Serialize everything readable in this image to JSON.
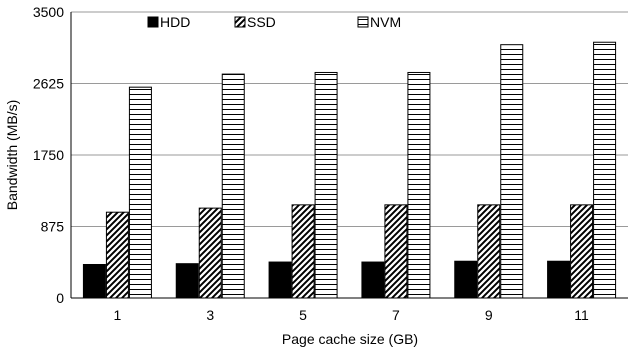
{
  "chart_data": {
    "type": "bar",
    "categories": [
      "1",
      "3",
      "5",
      "7",
      "9",
      "11"
    ],
    "series": [
      {
        "name": "HDD",
        "values": [
          410,
          420,
          440,
          440,
          450,
          450
        ],
        "pattern": "solid-black"
      },
      {
        "name": "SSD",
        "values": [
          1050,
          1100,
          1140,
          1140,
          1140,
          1140
        ],
        "pattern": "diagonal-hatch"
      },
      {
        "name": "NVM",
        "values": [
          2580,
          2740,
          2760,
          2760,
          3100,
          3130
        ],
        "pattern": "horizontal-lines"
      }
    ],
    "title": "",
    "xlabel": "Page cache size (GB)",
    "ylabel": "Bandwidth (MB/s)",
    "ylim": [
      0,
      3500
    ],
    "yticks": [
      "0",
      "875",
      "1750",
      "2625",
      "3500"
    ],
    "grid": true,
    "legend": "top"
  }
}
